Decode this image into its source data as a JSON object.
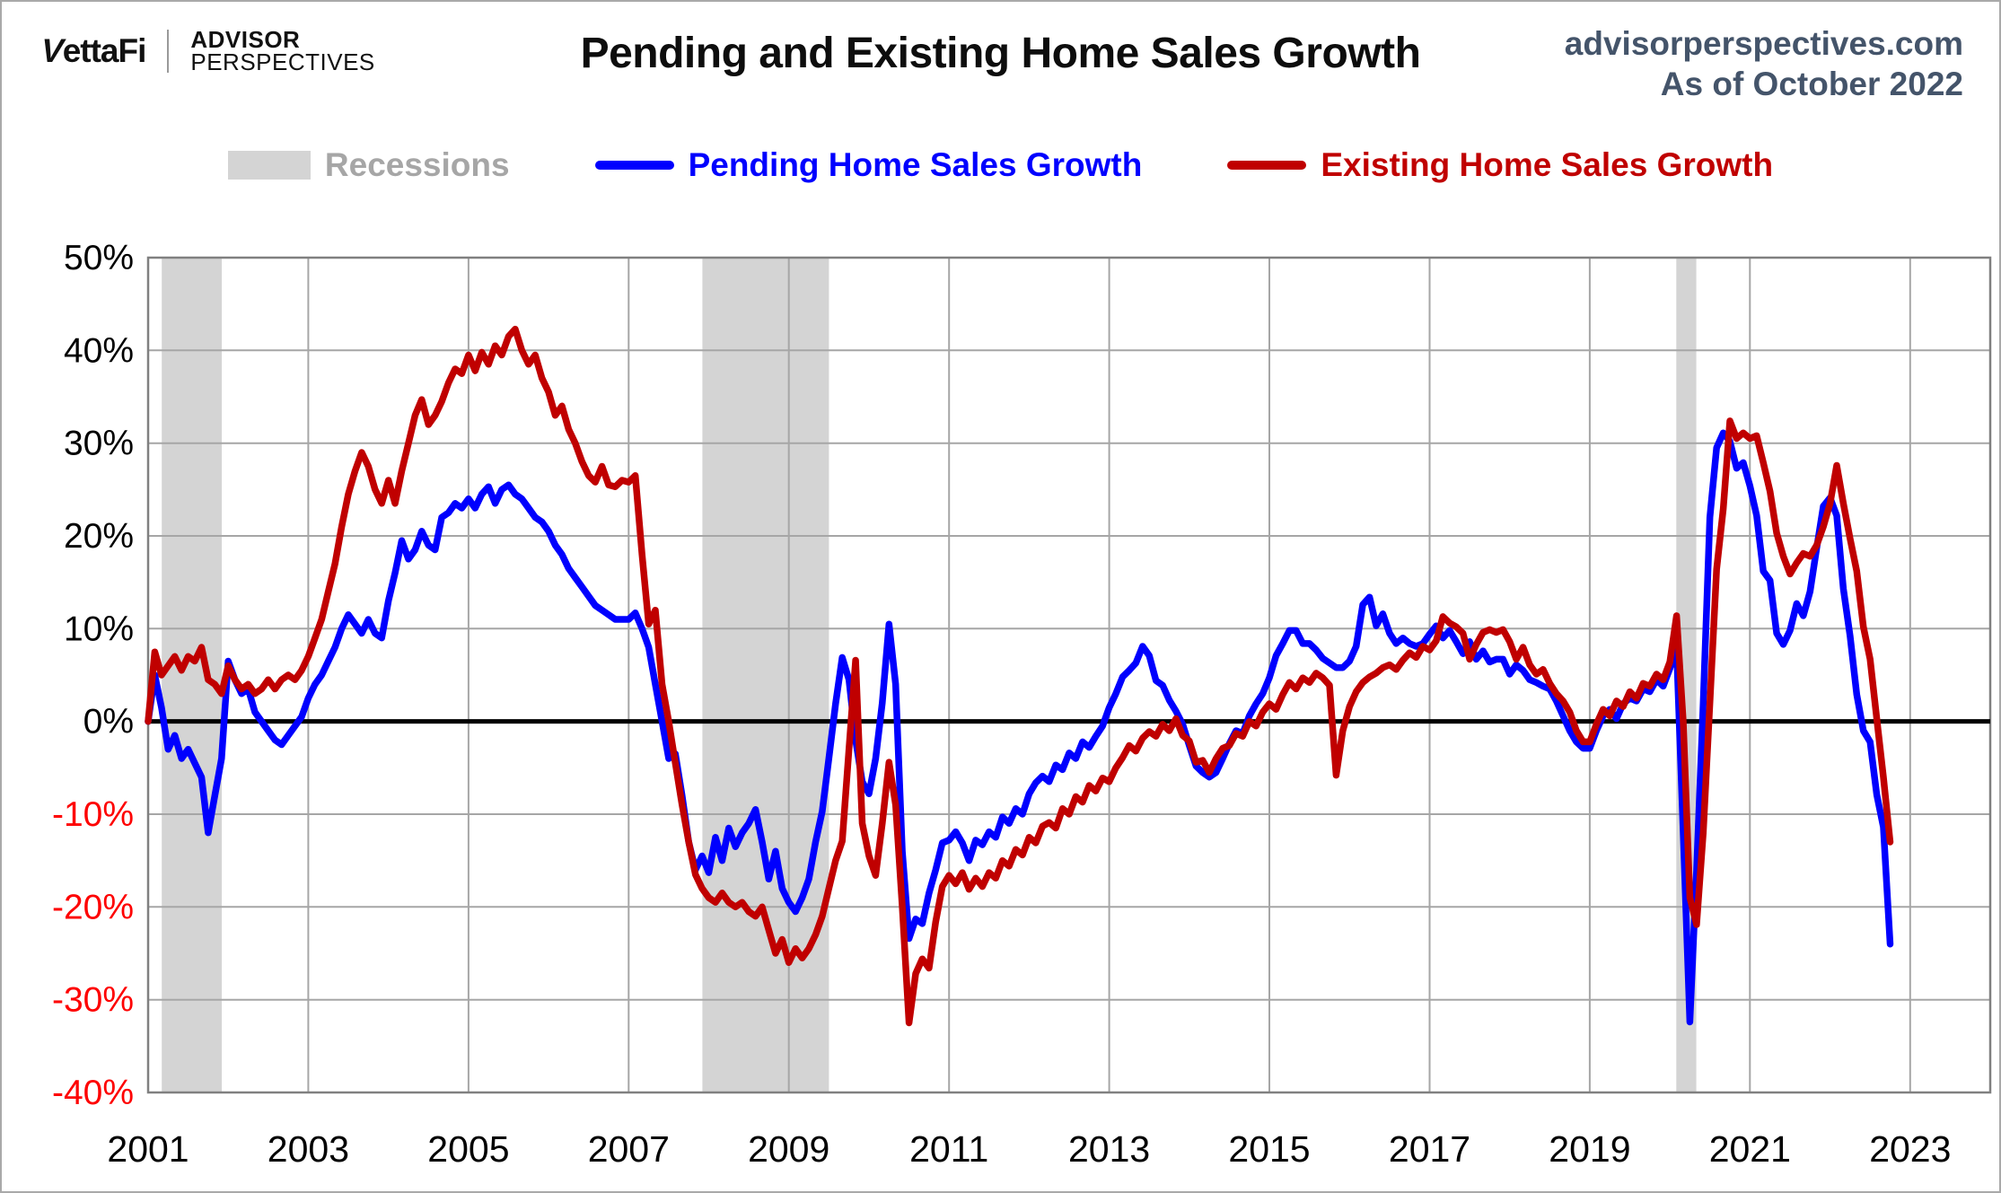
{
  "header": {
    "logo": {
      "brand_v": "V",
      "brand_rest": "ettaFi",
      "sub_top": "ADVISOR",
      "sub_bottom": "PERSPECTIVES"
    },
    "title": "Pending and Existing Home Sales Growth",
    "source_line1": "advisorperspectives.com",
    "source_line2": "As of October 2022"
  },
  "legend": [
    {
      "label": "Recessions",
      "swatch": "band",
      "swatch_color": "#d4d4d4",
      "text_color": "#a6a6a6"
    },
    {
      "label": "Pending Home Sales Growth",
      "swatch": "line",
      "swatch_color": "#0000fe",
      "text_color": "#0000fe"
    },
    {
      "label": "Existing Home Sales Growth",
      "swatch": "line",
      "swatch_color": "#c00000",
      "text_color": "#c00000"
    }
  ],
  "colors": {
    "grid": "#a6a6a6",
    "plot_border": "#808080",
    "zero_line": "#000000",
    "recession_band": "#d4d4d4",
    "pending": "#0000fe",
    "existing": "#c00000",
    "tick_positive": "#000000",
    "tick_negative": "#fe0000",
    "source_text": "#44546a"
  },
  "chart_data": {
    "type": "line",
    "title": "Pending and Existing Home Sales Growth",
    "xlabel": "",
    "ylabel": "",
    "xlim": [
      2001,
      2024
    ],
    "ylim": [
      -40,
      50
    ],
    "grid": true,
    "legend_position": "top",
    "x_interval": "monthly",
    "x_start": {
      "year": 2001,
      "month": 1
    },
    "x_end": {
      "year": 2022,
      "month": 10
    },
    "x_ticks": [
      {
        "value": 2001,
        "label": "2001"
      },
      {
        "value": 2003,
        "label": "2003"
      },
      {
        "value": 2005,
        "label": "2005"
      },
      {
        "value": 2007,
        "label": "2007"
      },
      {
        "value": 2009,
        "label": "2009"
      },
      {
        "value": 2011,
        "label": "2011"
      },
      {
        "value": 2013,
        "label": "2013"
      },
      {
        "value": 2015,
        "label": "2015"
      },
      {
        "value": 2017,
        "label": "2017"
      },
      {
        "value": 2019,
        "label": "2019"
      },
      {
        "value": 2021,
        "label": "2021"
      },
      {
        "value": 2023,
        "label": "2023"
      }
    ],
    "y_ticks": [
      {
        "value": 50,
        "label": "50%",
        "color": "#000000"
      },
      {
        "value": 40,
        "label": "40%",
        "color": "#000000"
      },
      {
        "value": 30,
        "label": "30%",
        "color": "#000000"
      },
      {
        "value": 20,
        "label": "20%",
        "color": "#000000"
      },
      {
        "value": 10,
        "label": "10%",
        "color": "#000000"
      },
      {
        "value": 0,
        "label": "0%",
        "color": "#000000"
      },
      {
        "value": -10,
        "label": "-10%",
        "color": "#fe0000"
      },
      {
        "value": -20,
        "label": "-20%",
        "color": "#fe0000"
      },
      {
        "value": -30,
        "label": "-30%",
        "color": "#fe0000"
      },
      {
        "value": -40,
        "label": "-40%",
        "color": "#fe0000"
      }
    ],
    "recession_bands": [
      {
        "start": 2001.17,
        "end": 2001.92
      },
      {
        "start": 2007.92,
        "end": 2009.5
      },
      {
        "start": 2020.08,
        "end": 2020.33
      }
    ],
    "series": [
      {
        "name": "Pending Home Sales Growth",
        "color": "#0000fe",
        "values": [
          0,
          5,
          1.5,
          -3,
          -1.5,
          -4,
          -3,
          -4.5,
          -6,
          -12,
          -8,
          -4,
          6.5,
          4.5,
          3,
          3.5,
          1,
          0,
          -1,
          -2,
          -2.5,
          -1.5,
          -0.5,
          0.5,
          2.5,
          4,
          5,
          6.5,
          8,
          10,
          11.5,
          10.5,
          9.5,
          11,
          9.5,
          9,
          13,
          16,
          19.5,
          17.5,
          18.5,
          20.5,
          19,
          18.5,
          22,
          22.5,
          23.5,
          23,
          24,
          23,
          24.5,
          25.3,
          23.5,
          25,
          25.5,
          24.5,
          24,
          23,
          22,
          21.5,
          20.5,
          19,
          18,
          16.5,
          15.5,
          14.5,
          13.5,
          12.5,
          12,
          11.5,
          11,
          11,
          11,
          11.7,
          10,
          8,
          4,
          0,
          -4,
          -3.5,
          -8,
          -13,
          -16,
          -14.5,
          -16.3,
          -12.5,
          -15,
          -11.5,
          -13.5,
          -12,
          -11,
          -9.5,
          -13,
          -17,
          -14,
          -18,
          -19.5,
          -20.5,
          -19,
          -17,
          -13,
          -9.7,
          -4,
          1.9,
          6.9,
          4.5,
          -2,
          -6.5,
          -7.8,
          -4,
          2,
          10.5,
          4,
          -14,
          -23.4,
          -21.3,
          -21.8,
          -18.5,
          -16,
          -13.1,
          -12.8,
          -11.9,
          -13.1,
          -15,
          -12.8,
          -13.3,
          -11.9,
          -12.5,
          -10.3,
          -11,
          -9.4,
          -10,
          -7.8,
          -6.6,
          -5.9,
          -6.5,
          -4.7,
          -5.2,
          -3.4,
          -4,
          -2.2,
          -2.8,
          -1.6,
          -0.5,
          1.5,
          3,
          4.8,
          5.5,
          6.3,
          8.1,
          7.1,
          4.4,
          3.9,
          2.3,
          1.1,
          -0.3,
          -2.6,
          -4.8,
          -5.5,
          -6,
          -5.5,
          -4,
          -2.4,
          -1,
          -1.3,
          0.6,
          1.9,
          3,
          4.7,
          7.1,
          8.4,
          9.8,
          9.8,
          8.4,
          8.4,
          7.7,
          6.8,
          6.3,
          5.8,
          5.8,
          6.5,
          8.1,
          12.6,
          13.4,
          10.3,
          11.6,
          9.5,
          8.4,
          9,
          8.4,
          8.1,
          8.4,
          9.4,
          10.3,
          9,
          9.8,
          8.6,
          7.3,
          8.6,
          6.7,
          7.6,
          6.4,
          6.7,
          6.7,
          5.1,
          6.1,
          5.5,
          4.5,
          4.2,
          3.8,
          3.5,
          2.2,
          0.6,
          -1,
          -2.2,
          -2.9,
          -2.9,
          -1,
          0.6,
          1.3,
          0.3,
          1.9,
          2.5,
          2.2,
          3.5,
          3.2,
          4.5,
          3.8,
          5.7,
          7.9,
          -12,
          -32.4,
          -16,
          2,
          22,
          29.5,
          31.1,
          30.2,
          27.3,
          27.9,
          25.4,
          22.2,
          16.2,
          15.2,
          9.5,
          8.3,
          9.8,
          12.7,
          11.4,
          14,
          18.7,
          23.2,
          24.1,
          22.2,
          14.3,
          9.2,
          2.9,
          -1,
          -2.2,
          -7.9,
          -11.4,
          -24
        ]
      },
      {
        "name": "Existing Home Sales Growth",
        "color": "#c00000",
        "values": [
          0,
          7.5,
          5,
          6,
          7,
          5.5,
          7,
          6.5,
          8,
          4.5,
          4,
          3,
          6,
          4.5,
          3.5,
          4,
          3,
          3.5,
          4.5,
          3.5,
          4.5,
          5,
          4.5,
          5.5,
          7,
          9,
          11,
          14,
          17,
          21,
          24.5,
          27,
          29,
          27.5,
          25,
          23.5,
          26,
          23.5,
          27,
          30,
          33,
          34.7,
          32,
          33,
          34.5,
          36.5,
          38,
          37.5,
          39.5,
          37.8,
          39.8,
          38.5,
          40.5,
          39.5,
          41.5,
          42.3,
          40,
          38.5,
          39.5,
          37,
          35.5,
          33,
          34,
          31.5,
          30,
          28,
          26.5,
          25.8,
          27.5,
          25.5,
          25.3,
          26,
          25.8,
          26.5,
          18,
          10.5,
          12,
          4,
          0,
          -4.5,
          -9,
          -13,
          -16.5,
          -18,
          -19,
          -19.5,
          -18.5,
          -19.5,
          -20,
          -19.5,
          -20.5,
          -21,
          -20,
          -22.5,
          -25,
          -23.5,
          -26,
          -24.5,
          -25.5,
          -24.5,
          -23,
          -21,
          -18,
          -15,
          -12.9,
          -3,
          6.6,
          -11,
          -14.5,
          -16.6,
          -11,
          -4.4,
          -9,
          -20,
          -32.5,
          -27.2,
          -25.6,
          -26.6,
          -21.6,
          -17.8,
          -16.6,
          -17.5,
          -16.3,
          -18.1,
          -16.9,
          -17.8,
          -16.3,
          -16.9,
          -15,
          -15.6,
          -13.8,
          -14.4,
          -12.5,
          -13.1,
          -11.3,
          -10.9,
          -11.5,
          -9.4,
          -10,
          -8.1,
          -8.7,
          -6.9,
          -7.5,
          -6.1,
          -6.5,
          -5,
          -3.9,
          -2.6,
          -3.2,
          -1.8,
          -1.1,
          -1.6,
          -0.3,
          -1,
          0.3,
          -1.5,
          -2.1,
          -4.4,
          -4.2,
          -5.5,
          -4,
          -2.9,
          -2.6,
          -1.3,
          -1.6,
          0,
          -0.5,
          1,
          1.9,
          1.3,
          2.9,
          4.2,
          3.5,
          4.7,
          4.2,
          5.2,
          4.7,
          3.9,
          -5.8,
          -1,
          1.6,
          3.2,
          4.2,
          4.8,
          5.2,
          5.8,
          6.1,
          5.6,
          6.6,
          7.4,
          6.9,
          8.1,
          7.7,
          8.7,
          11.3,
          10.6,
          10.2,
          9.5,
          6.7,
          8.3,
          9.6,
          9.9,
          9.6,
          9.9,
          8.6,
          6.7,
          8,
          6.1,
          5.1,
          5.6,
          4.1,
          3,
          2.2,
          1,
          -1,
          -2.2,
          -2.2,
          -0.3,
          1.3,
          0.6,
          2.2,
          1.6,
          3.2,
          2.5,
          4.1,
          3.8,
          5.1,
          4.5,
          6.4,
          11.4,
          0,
          -19,
          -21.9,
          -12,
          2,
          16.4,
          22.9,
          32.4,
          30.5,
          31.1,
          30.5,
          30.8,
          27.9,
          24.8,
          20.3,
          17.8,
          15.9,
          17.1,
          18.1,
          17.8,
          19,
          21,
          23.5,
          27.6,
          23.5,
          19.7,
          16.2,
          10.2,
          6.7,
          0.3,
          -6,
          -13
        ]
      }
    ]
  }
}
